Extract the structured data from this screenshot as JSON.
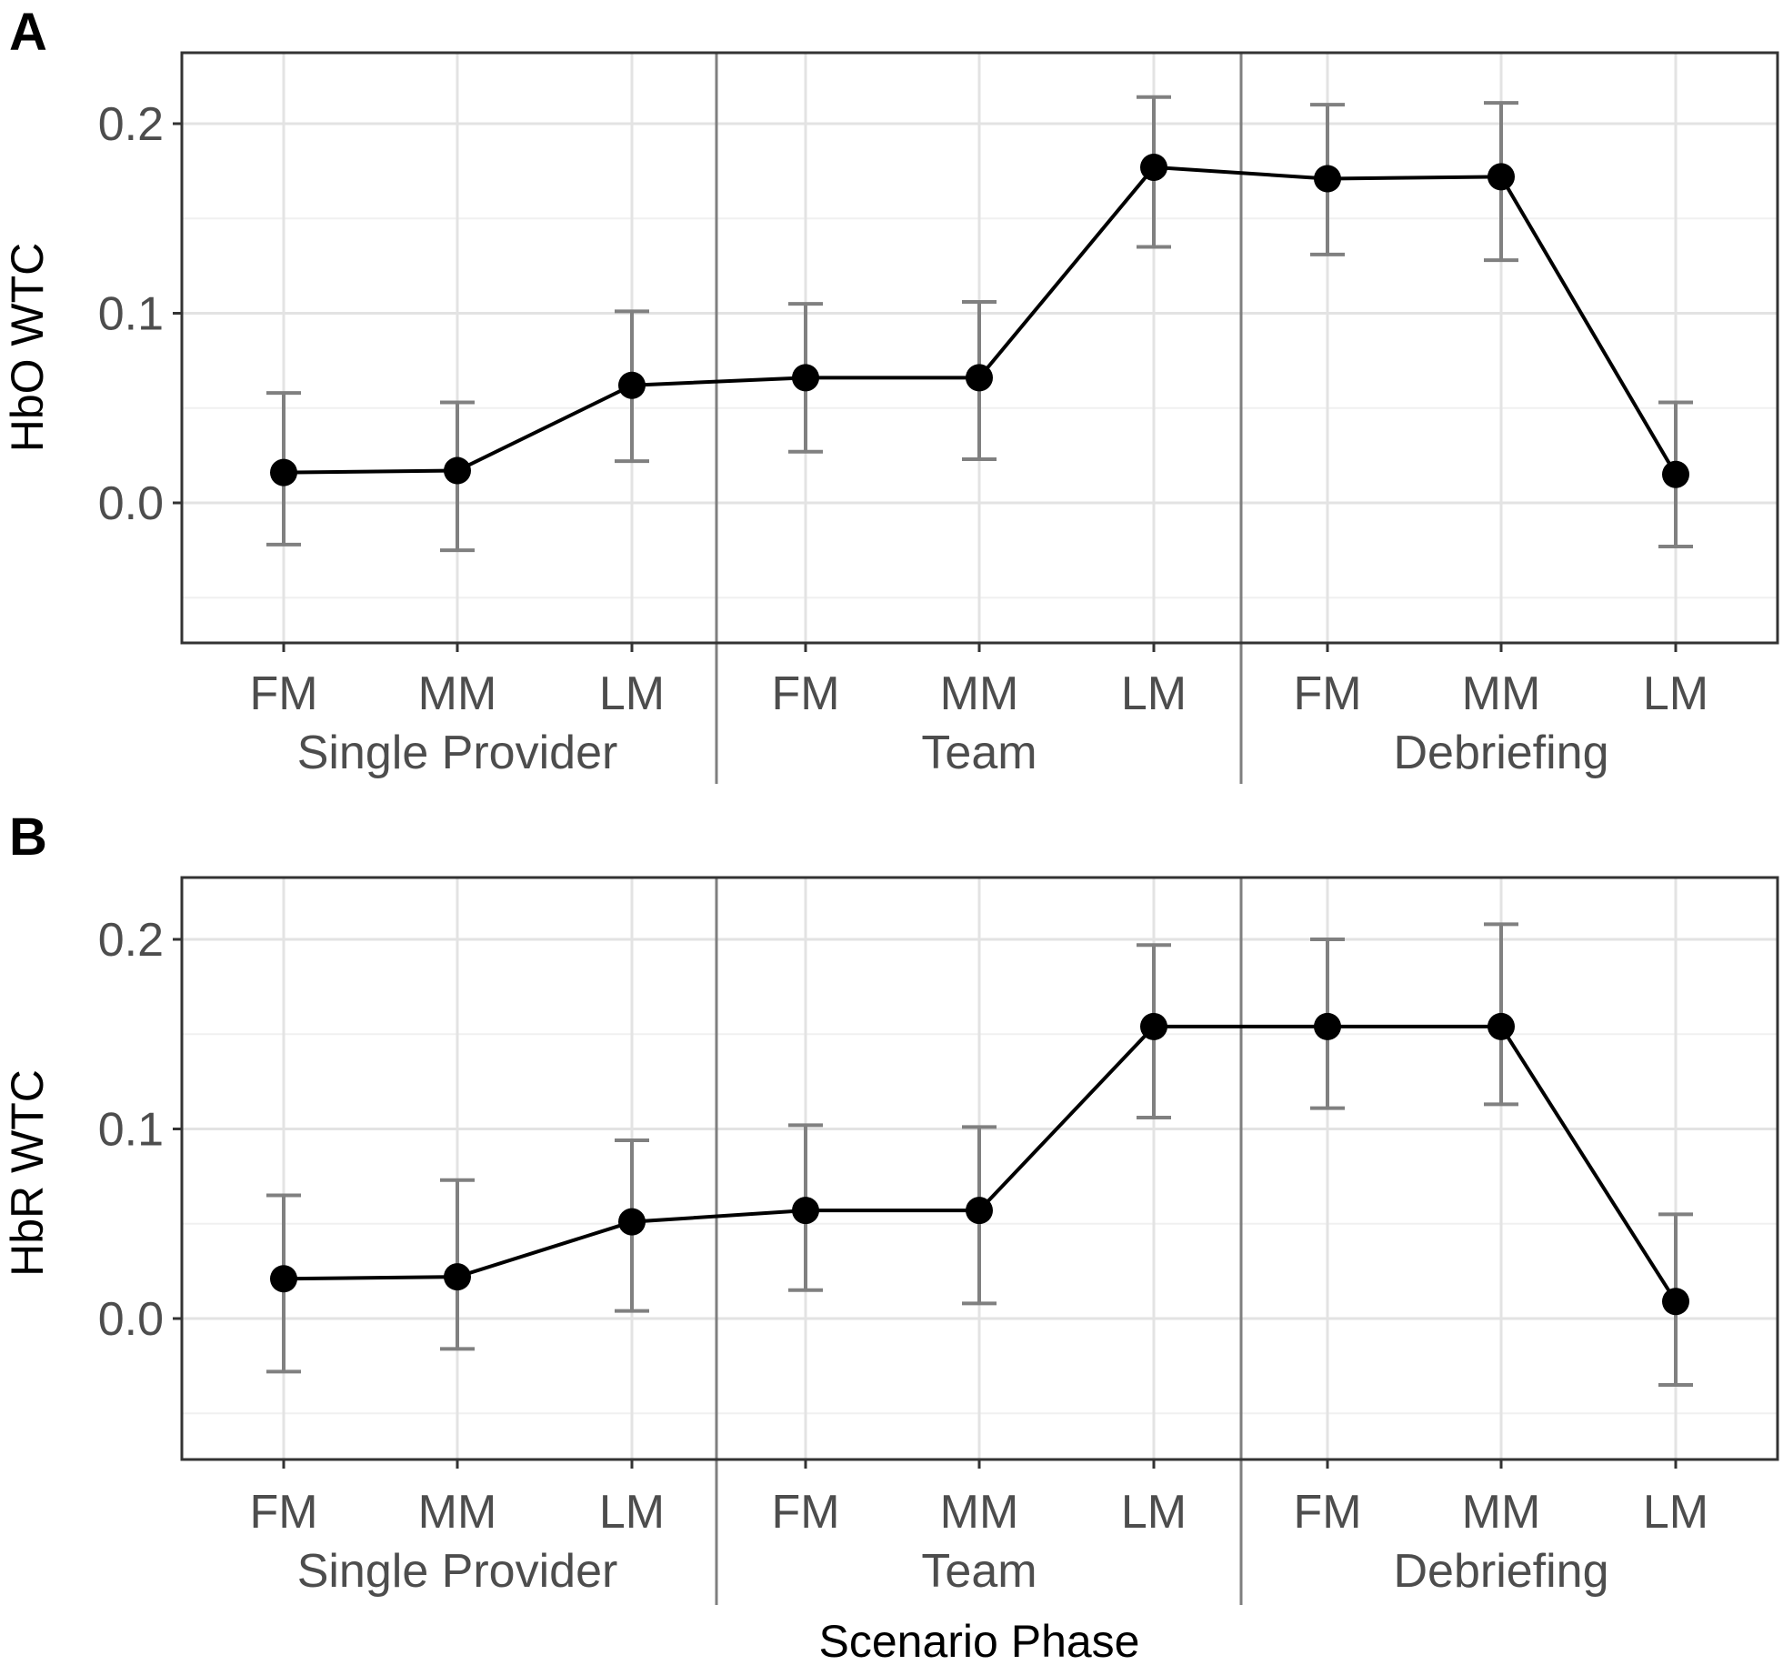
{
  "chart_data": [
    {
      "type": "line",
      "panel_label": "A",
      "ylabel": "HbO WTC",
      "ylim": [
        -0.075,
        0.235
      ],
      "yticks": [
        0.0,
        0.1,
        0.2
      ],
      "ytick_labels": [
        "0.0",
        "0.1",
        "0.2"
      ],
      "categories": [
        "FM",
        "MM",
        "LM",
        "FM",
        "MM",
        "LM",
        "FM",
        "MM",
        "LM"
      ],
      "groups": [
        "Single Provider",
        "Team",
        "Debriefing"
      ],
      "series": [
        {
          "name": "HbO WTC",
          "values": [
            0.016,
            0.017,
            0.062,
            0.066,
            0.066,
            0.177,
            0.171,
            0.172,
            0.015
          ],
          "error_lower": [
            -0.022,
            -0.025,
            0.022,
            0.027,
            0.023,
            0.135,
            0.131,
            0.128,
            -0.023
          ],
          "error_upper": [
            0.058,
            0.053,
            0.101,
            0.105,
            0.106,
            0.214,
            0.21,
            0.211,
            0.053
          ]
        }
      ],
      "grid": true
    },
    {
      "type": "line",
      "panel_label": "B",
      "ylabel": "HbR WTC",
      "xlabel": "Scenario Phase",
      "ylim": [
        -0.075,
        0.235
      ],
      "yticks": [
        0.0,
        0.1,
        0.2
      ],
      "ytick_labels": [
        "0.0",
        "0.1",
        "0.2"
      ],
      "categories": [
        "FM",
        "MM",
        "LM",
        "FM",
        "MM",
        "LM",
        "FM",
        "MM",
        "LM"
      ],
      "groups": [
        "Single Provider",
        "Team",
        "Debriefing"
      ],
      "series": [
        {
          "name": "HbR WTC",
          "values": [
            0.021,
            0.022,
            0.051,
            0.057,
            0.057,
            0.154,
            0.154,
            0.154,
            0.009
          ],
          "error_lower": [
            -0.028,
            -0.016,
            0.004,
            0.015,
            0.008,
            0.106,
            0.111,
            0.113,
            -0.035
          ],
          "error_upper": [
            0.065,
            0.073,
            0.094,
            0.102,
            0.101,
            0.197,
            0.2,
            0.208,
            0.055
          ]
        }
      ],
      "grid": true
    }
  ]
}
